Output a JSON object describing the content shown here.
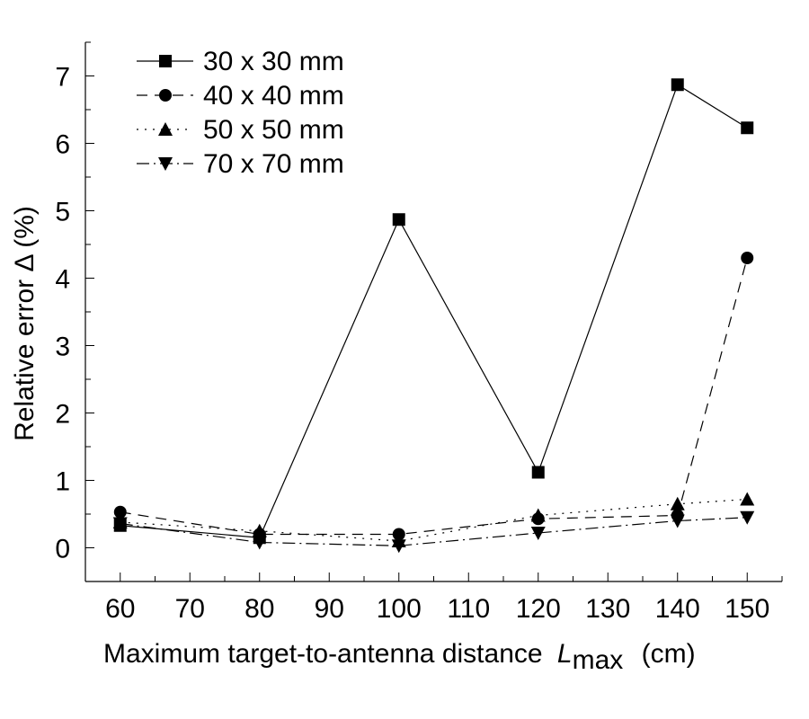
{
  "chart_data": {
    "type": "line",
    "title": "",
    "xlabel": "Maximum target-to-antenna distance",
    "xlabel_symbol": "L",
    "xlabel_subscript": "max",
    "xlabel_unit": "(cm)",
    "ylabel": "Relative error Δ (%)",
    "xlim": [
      55,
      155
    ],
    "ylim": [
      -0.5,
      7.5
    ],
    "xticks": [
      60,
      70,
      80,
      90,
      100,
      110,
      120,
      130,
      140,
      150
    ],
    "yticks": [
      0,
      1,
      2,
      3,
      4,
      5,
      6,
      7
    ],
    "grid": false,
    "legend_position": "top-left",
    "x": [
      60,
      80,
      100,
      120,
      140,
      150
    ],
    "series": [
      {
        "name": "30 x 30 mm",
        "marker": "square",
        "dash": "",
        "values": [
          0.33,
          0.15,
          4.87,
          1.12,
          6.87,
          6.23
        ]
      },
      {
        "name": "40 x 40 mm",
        "marker": "circle",
        "dash": "12,8",
        "values": [
          0.53,
          0.2,
          0.2,
          0.43,
          0.48,
          4.3
        ]
      },
      {
        "name": "50 x 50 mm",
        "marker": "triangle-up",
        "dash": "2,7",
        "values": [
          0.38,
          0.25,
          0.1,
          0.48,
          0.65,
          0.72
        ]
      },
      {
        "name": "70 x 70 mm",
        "marker": "triangle-down",
        "dash": "14,5,2,5",
        "values": [
          0.36,
          0.08,
          0.03,
          0.22,
          0.4,
          0.45
        ]
      }
    ]
  }
}
